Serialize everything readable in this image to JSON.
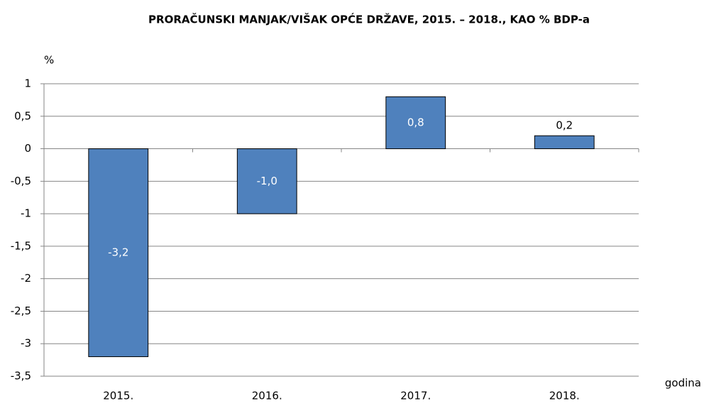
{
  "chart_data": {
    "type": "bar",
    "title": "PRORAČUNSKI MANJAK/VIŠAK OPĆE DRŽAVE, 2015. – 2018., KAO % BDP-a",
    "y_label": "%",
    "x_label": "godina",
    "categories": [
      "2015.",
      "2016.",
      "2017.",
      "2018."
    ],
    "values": [
      -3.2,
      -1.0,
      0.8,
      0.2
    ],
    "value_labels": [
      "-3,2",
      "-1,0",
      "0,8",
      "0,2"
    ],
    "color": "#4f81bd",
    "ylim": [
      -3.5,
      1
    ],
    "yticks": [
      1,
      {
        "value": 0.5,
        "label": "0,5"
      },
      0,
      {
        "value": -0.5,
        "label": "-0,5"
      },
      -1,
      {
        "value": -1.5,
        "label": "-1,5"
      },
      -2,
      {
        "value": -2.5,
        "label": "-2,5"
      },
      -3,
      {
        "value": -3.5,
        "label": "-3,5"
      }
    ],
    "grid": true
  }
}
